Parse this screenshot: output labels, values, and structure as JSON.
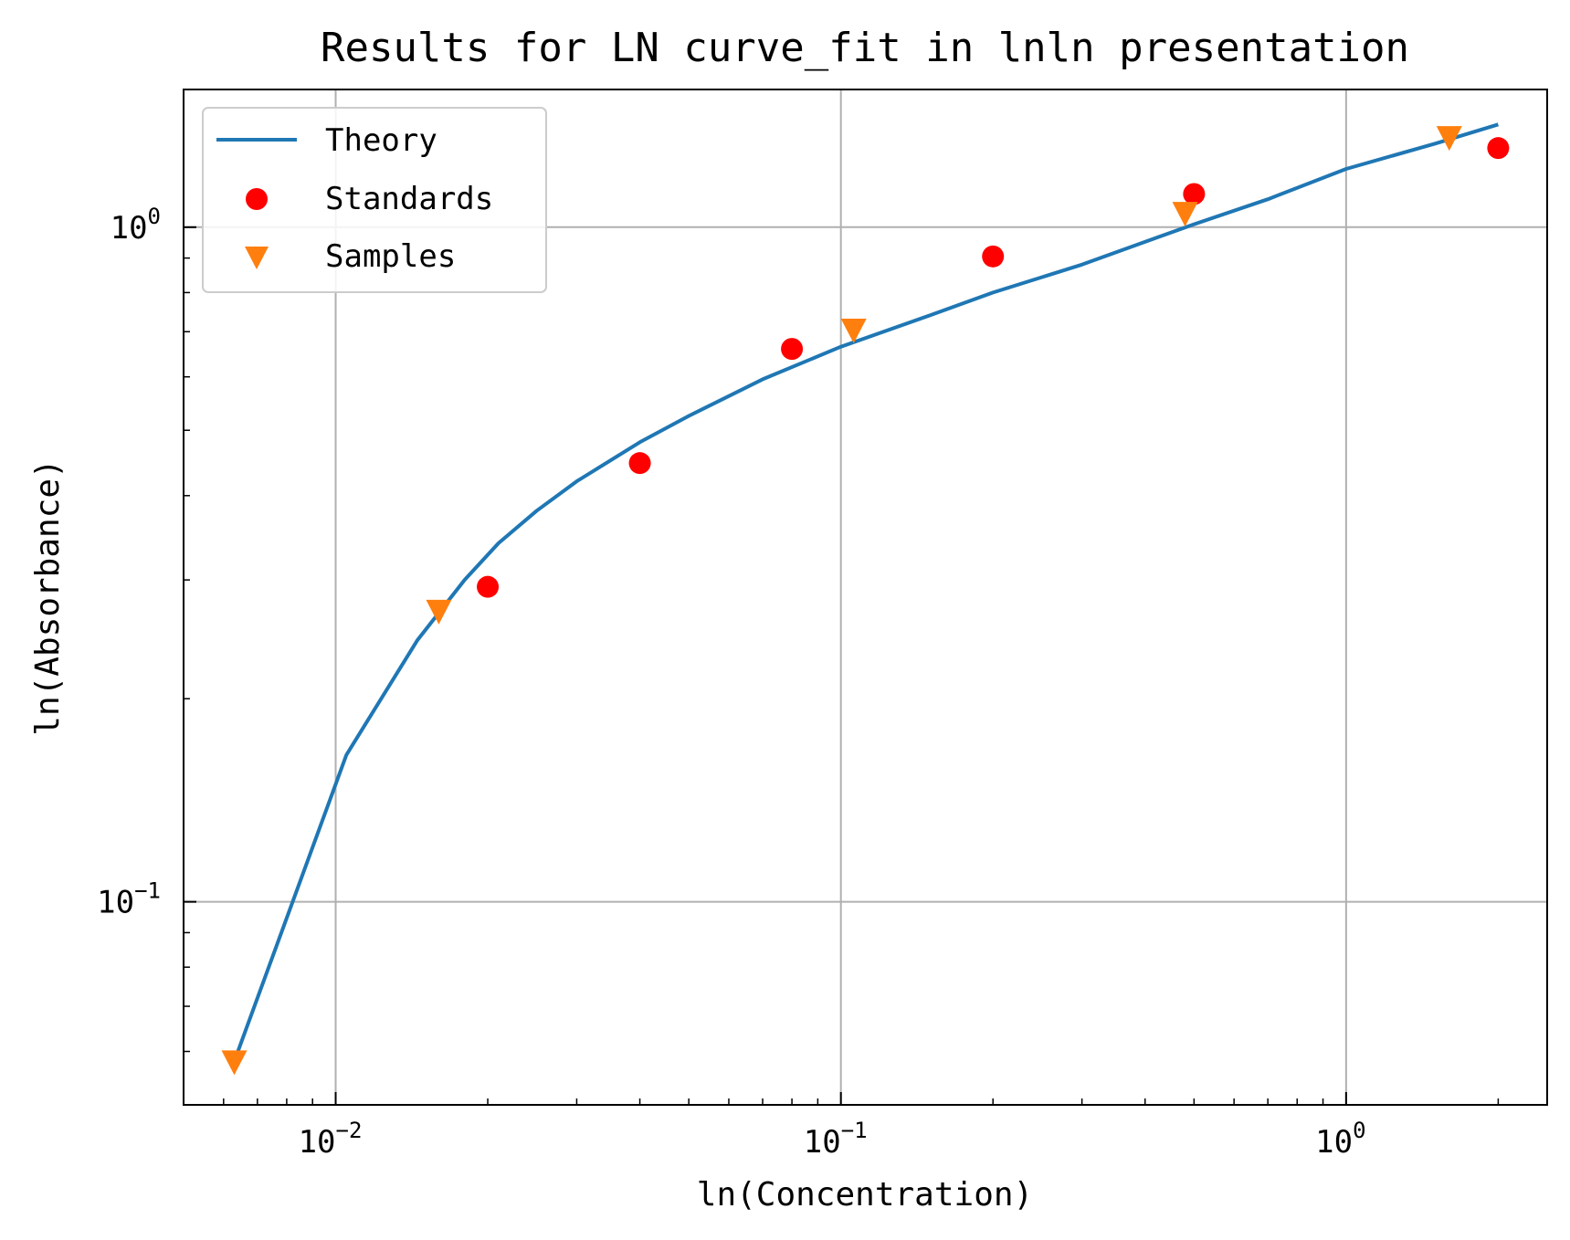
{
  "chart_data": {
    "type": "scatter",
    "title": "Results for LN curve_fit in lnln presentation",
    "xlabel": "ln(Concentration)",
    "ylabel": "ln(Absorbance)",
    "x_scale": "log",
    "y_scale": "log",
    "xlim": [
      0.005,
      2.5
    ],
    "ylim": [
      0.05,
      1.6
    ],
    "grid": true,
    "legend_position": "upper-left",
    "x_ticks": [
      {
        "value": 0.01,
        "base": "10",
        "exp": "−2"
      },
      {
        "value": 0.1,
        "base": "10",
        "exp": "−1"
      },
      {
        "value": 1,
        "base": "10",
        "exp": "0"
      }
    ],
    "y_ticks": [
      {
        "value": 0.1,
        "base": "10",
        "exp": "−1"
      },
      {
        "value": 1,
        "base": "10",
        "exp": "0"
      }
    ],
    "series": [
      {
        "name": "Theory",
        "kind": "line",
        "color": "#1f77b4",
        "x": [
          0.0063,
          0.0105,
          0.0145,
          0.018,
          0.021,
          0.025,
          0.03,
          0.04,
          0.05,
          0.07,
          0.1,
          0.15,
          0.2,
          0.3,
          0.5,
          0.7,
          1.0,
          1.5,
          2.0
        ],
        "y": [
          0.058,
          0.165,
          0.244,
          0.3,
          0.34,
          0.38,
          0.42,
          0.48,
          0.525,
          0.595,
          0.665,
          0.74,
          0.8,
          0.88,
          1.01,
          1.1,
          1.22,
          1.33,
          1.42
        ]
      },
      {
        "name": "Standards",
        "kind": "marker",
        "marker": "circle",
        "color": "#ff0000",
        "x": [
          0.02,
          0.04,
          0.08,
          0.2,
          0.5,
          2.0
        ],
        "y": [
          0.293,
          0.447,
          0.66,
          0.905,
          1.12,
          1.31
        ]
      },
      {
        "name": "Samples",
        "kind": "marker",
        "marker": "triangle-down",
        "color": "#ff7f0e",
        "x": [
          0.0063,
          0.016,
          0.106,
          0.48,
          1.6
        ],
        "y": [
          0.058,
          0.27,
          0.705,
          1.05,
          1.36
        ]
      }
    ]
  }
}
